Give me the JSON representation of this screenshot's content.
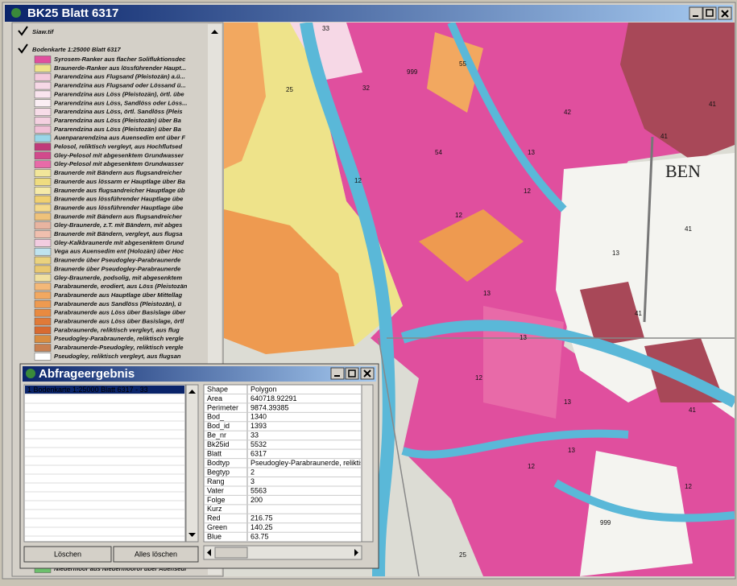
{
  "window": {
    "title": "BK25 Blatt 6317"
  },
  "layers": {
    "raster": "Siaw.tif",
    "vector": "Bodenkarte 1:25000 Blatt 6317",
    "legend": [
      {
        "label": "Syrosem-Ranker aus flacher Solifluktionsdec",
        "color": "#e04f9e"
      },
      {
        "label": "Braunerde-Ranker aus lössführender Haupt...",
        "color": "#eee38a"
      },
      {
        "label": "Pararendzina aus Flugsand (Pleistozän) a.ü...",
        "color": "#f3c9dc"
      },
      {
        "label": "Pararendzina aus Flugsand oder Lössand ü...",
        "color": "#f6d8e6"
      },
      {
        "label": "Pararendzina aus Löss (Pleistozän), örtl. übe",
        "color": "#f9e4ee"
      },
      {
        "label": "Pararendzina aus Löss, Sandlöss oder Löss...",
        "color": "#fbeef4"
      },
      {
        "label": "Pararendzina aus Löss, örtl. Sandlöss (Pleis",
        "color": "#f7dce8"
      },
      {
        "label": "Pararendzina aus Löss (Pleistozän) über Ba",
        "color": "#f4d0e0"
      },
      {
        "label": "Pararendzina aus Löss (Pleistozän) über Ba",
        "color": "#f0c0d6"
      },
      {
        "label": "Auenpararendzina aus Auensedim ent über F",
        "color": "#9ad6e8"
      },
      {
        "label": "Pelosol, reliktisch vergleyt, aus Hochflutsed",
        "color": "#c03a7a"
      },
      {
        "label": "Gley-Pelosol mit abgesenktem Grundwasser",
        "color": "#d24a8c"
      },
      {
        "label": "Gley-Pelosol mit abgesenktem Grundwasser",
        "color": "#e86aa8"
      },
      {
        "label": "Braunerde mit Bändern aus flugsandreicher",
        "color": "#f2e69a"
      },
      {
        "label": "Braunerde aus lössarm er Hauptlage über Ba",
        "color": "#efdc80"
      },
      {
        "label": "Braunerde aus flugsandreicher Hauptlage üb",
        "color": "#f5eaa8"
      },
      {
        "label": "Braunerde aus lössführender Hauptlage übe",
        "color": "#f0d070"
      },
      {
        "label": "Braunerde aus lössführender Hauptlage übe",
        "color": "#f4d98a"
      },
      {
        "label": "Braunerde mit Bändern aus flugsandreicher",
        "color": "#efc27a"
      },
      {
        "label": "Gley-Braunerde, z.T. mit Bändern, mit abges",
        "color": "#e8b4a0"
      },
      {
        "label": "Braunerde mit Bändern, vergleyt, aus flugsa",
        "color": "#f0bfae"
      },
      {
        "label": "Gley-Kalkbraunerde mit abgesenktem Grund",
        "color": "#f2cce0"
      },
      {
        "label": "Vega aus Auensedim ent (Holozän) über Hoc",
        "color": "#bfe3ef"
      },
      {
        "label": "Braunerde über Pseudogley-Parabraunerde",
        "color": "#ead27e"
      },
      {
        "label": "Braunerde über Pseudogley-Parabraunerde",
        "color": "#e9c870"
      },
      {
        "label": "Gley-Braunerde, podsolig, mit abgesenktem",
        "color": "#f0e0a0"
      },
      {
        "label": "Parabraunerde, erodiert, aus Löss (Pleistozän",
        "color": "#f4b878"
      },
      {
        "label": "Parabraunerde aus Hauptlage über Mittellag",
        "color": "#f2a860"
      },
      {
        "label": "Parabraunerde aus Sandlöss (Pleistozän), ü",
        "color": "#ee9a50"
      },
      {
        "label": "Parabraunerde aus Löss über Basislage über",
        "color": "#e98a40"
      },
      {
        "label": "Parabraunerde aus Löss über Basislage, örtl",
        "color": "#e07a38"
      },
      {
        "label": "Parabraunerde, reliktisch vergleyt, aus flug",
        "color": "#d86a30"
      },
      {
        "label": "Pseudogley-Parabraunerde, reliktisch vergle",
        "color": "#d88c40"
      },
      {
        "label": "Parabraunerde-Pseudogley, reliktisch vergle",
        "color": "#c98050"
      },
      {
        "label": "Pseudogley, reliktisch vergleyt, aus flugsan",
        "color": "#ffffff"
      }
    ],
    "last": {
      "label": "Niedermoor aus Niedermoorof über Auensedi",
      "color": "#6cc06c"
    }
  },
  "map": {
    "labels": [
      "33",
      "12",
      "13",
      "41",
      "999",
      "55",
      "25",
      "32",
      "54",
      "12",
      "13",
      "41",
      "12",
      "13",
      "41",
      "42",
      "12",
      "13",
      "41",
      "12",
      "13",
      "999",
      "12",
      "41",
      "13",
      "25"
    ],
    "place": "BEN"
  },
  "dialog": {
    "title": "Abfrageergebnis",
    "results": [
      "1  Bodenkarte 1:25000 Blatt 6317 - 33"
    ],
    "buttons": [
      "Löschen",
      "Alles löschen"
    ],
    "attributes": [
      [
        "Shape",
        "Polygon"
      ],
      [
        "Area",
        "640718.92291"
      ],
      [
        "Perimeter",
        "9874.39385"
      ],
      [
        "Bod_",
        "1340"
      ],
      [
        "Bod_id",
        "1393"
      ],
      [
        "Be_nr",
        "33"
      ],
      [
        "Bk25id",
        "5532"
      ],
      [
        "Blatt",
        "6317"
      ],
      [
        "Bodtyp",
        "Pseudogley-Parabraunerde, reliktis"
      ],
      [
        "Begtyp",
        "2"
      ],
      [
        "Rang",
        "3"
      ],
      [
        "Vater",
        "5563"
      ],
      [
        "Folge",
        "200"
      ],
      [
        "Kurz"
      ],
      [
        "Red",
        "216.75"
      ],
      [
        "Green",
        "140.25"
      ],
      [
        "Blue",
        "63.75"
      ]
    ]
  }
}
